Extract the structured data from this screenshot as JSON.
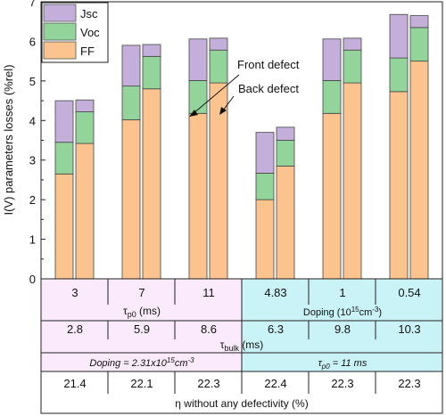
{
  "chart_data": {
    "type": "bar",
    "stacked": true,
    "ylabel": "I(V) parameters losses (%rel)",
    "ylim": [
      0,
      7
    ],
    "yticks": [
      0,
      1,
      2,
      3,
      4,
      5,
      6,
      7
    ],
    "legend": {
      "placement": "top-left",
      "entries": [
        {
          "name": "Jsc",
          "color": "#c4afda"
        },
        {
          "name": "Voc",
          "color": "#93d49a"
        },
        {
          "name": "FF",
          "color": "#fbc48e"
        }
      ]
    },
    "annotations": [
      "Front defect",
      "Back defect"
    ],
    "groups": [
      {
        "bars": [
          {
            "position": "front",
            "FF": 2.65,
            "Voc": 0.8,
            "Jsc": 1.05
          },
          {
            "position": "back",
            "FF": 3.42,
            "Voc": 0.8,
            "Jsc": 0.3
          }
        ]
      },
      {
        "bars": [
          {
            "position": "front",
            "FF": 4.02,
            "Voc": 0.85,
            "Jsc": 1.03
          },
          {
            "position": "back",
            "FF": 4.8,
            "Voc": 0.82,
            "Jsc": 0.3
          }
        ]
      },
      {
        "bars": [
          {
            "position": "front",
            "FF": 4.18,
            "Voc": 0.83,
            "Jsc": 1.05
          },
          {
            "position": "back",
            "FF": 4.95,
            "Voc": 0.83,
            "Jsc": 0.3
          }
        ]
      },
      {
        "bars": [
          {
            "position": "front",
            "FF": 2.0,
            "Voc": 0.67,
            "Jsc": 1.03
          },
          {
            "position": "back",
            "FF": 2.85,
            "Voc": 0.65,
            "Jsc": 0.33
          }
        ]
      },
      {
        "bars": [
          {
            "position": "front",
            "FF": 4.18,
            "Voc": 0.83,
            "Jsc": 1.05
          },
          {
            "position": "back",
            "FF": 4.95,
            "Voc": 0.83,
            "Jsc": 0.3
          }
        ]
      },
      {
        "bars": [
          {
            "position": "front",
            "FF": 4.73,
            "Voc": 0.85,
            "Jsc": 1.1
          },
          {
            "position": "back",
            "FF": 5.5,
            "Voc": 0.85,
            "Jsc": 0.3
          }
        ]
      }
    ],
    "table": {
      "left_color": "#fbeafb",
      "right_color": "#c9f3f6",
      "row1_values": [
        "3",
        "7",
        "11",
        "4.83",
        "1",
        "0.54"
      ],
      "row1_label_left_main": "τ",
      "row1_label_left_sub": "p0",
      "row1_label_left_rest": " (ms)",
      "row1_label_right_main": "Doping (10",
      "row1_label_right_sup": "15",
      "row1_label_right_mid": "cm",
      "row1_label_right_sup2": "-3",
      "row1_label_right_end": ")",
      "row2_values": [
        "2.8",
        "5.9",
        "8.6",
        "6.3",
        "9.8",
        "10.3"
      ],
      "row2_label_main": "τ",
      "row2_label_sub": "bulk",
      "row2_label_rest": " (ms)",
      "row3_left_main": "Doping = 2.31x10",
      "row3_left_sup": "15",
      "row3_left_mid": "cm",
      "row3_left_sup2": "-3",
      "row3_right_main": "τ",
      "row3_right_sub": "p0",
      "row3_right_rest": " = 11 ms",
      "row4_values": [
        "21.4",
        "22.1",
        "22.3",
        "22.4",
        "22.3",
        "22.3"
      ],
      "row4_label": "η without any defectivity (%)"
    }
  }
}
